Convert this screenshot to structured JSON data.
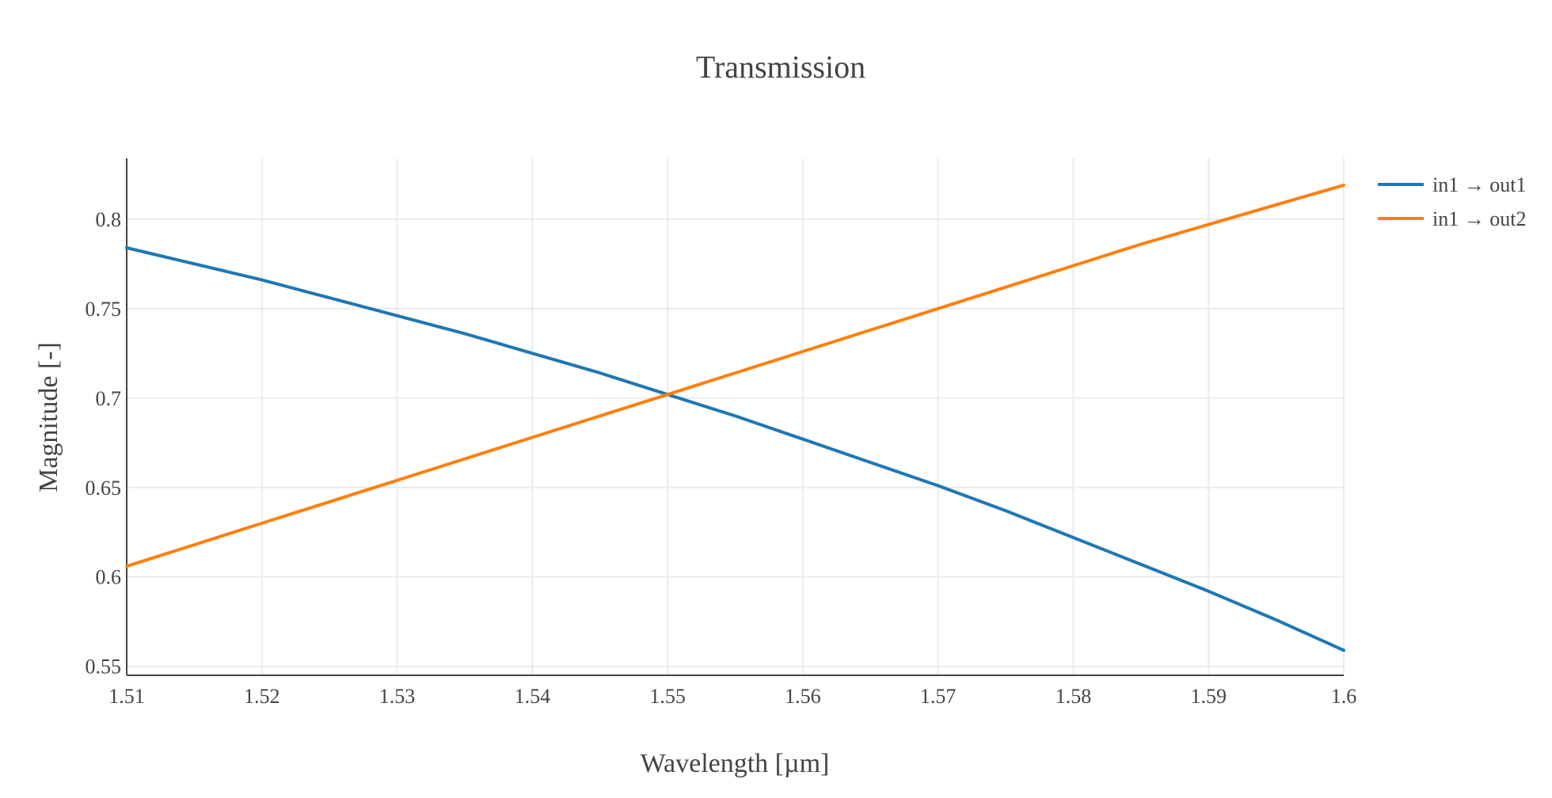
{
  "chart_data": {
    "type": "line",
    "title": "Transmission",
    "xlabel": "Wavelength [µm]",
    "ylabel": "Magnitude [-]",
    "xlim": [
      1.51,
      1.6
    ],
    "ylim": [
      0.545,
      0.834
    ],
    "x_ticks": [
      "1.51",
      "1.52",
      "1.53",
      "1.54",
      "1.55",
      "1.56",
      "1.57",
      "1.58",
      "1.59",
      "1.6"
    ],
    "y_ticks": [
      "0.55",
      "0.6",
      "0.65",
      "0.7",
      "0.75",
      "0.8"
    ],
    "grid": true,
    "legend_position": "top-right",
    "x": [
      1.51,
      1.515,
      1.52,
      1.525,
      1.53,
      1.535,
      1.54,
      1.545,
      1.55,
      1.555,
      1.56,
      1.565,
      1.57,
      1.575,
      1.58,
      1.585,
      1.59,
      1.595,
      1.6
    ],
    "series": [
      {
        "name": "in1 → out1",
        "color": "#1f77b4",
        "values": [
          0.784,
          0.775,
          0.766,
          0.756,
          0.746,
          0.736,
          0.725,
          0.714,
          0.702,
          0.69,
          0.677,
          0.664,
          0.651,
          0.637,
          0.622,
          0.607,
          0.592,
          0.576,
          0.559
        ]
      },
      {
        "name": "in1 → out2",
        "color": "#ff7f0e",
        "values": [
          0.606,
          0.618,
          0.63,
          0.642,
          0.654,
          0.666,
          0.678,
          0.69,
          0.702,
          0.714,
          0.726,
          0.738,
          0.75,
          0.762,
          0.774,
          0.786,
          0.797,
          0.808,
          0.819
        ]
      }
    ]
  }
}
